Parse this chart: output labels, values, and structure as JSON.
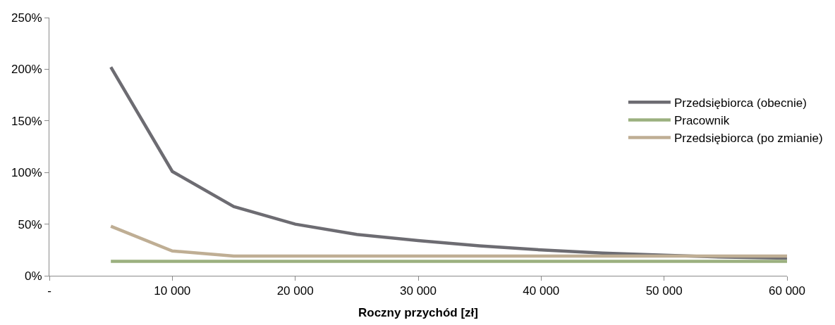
{
  "chart_data": {
    "type": "line",
    "xlabel": "Roczny przychód [zł]",
    "x": [
      5000,
      10000,
      15000,
      20000,
      25000,
      30000,
      35000,
      40000,
      45000,
      50000,
      55000,
      60000
    ],
    "series": [
      {
        "name": "Przedsiębiorca (obecnie)",
        "color": "#6d6c72",
        "values": [
          202,
          101,
          67,
          50,
          40,
          34,
          29,
          25,
          22,
          20,
          18,
          17
        ]
      },
      {
        "name": "Pracownik",
        "color": "#9bb07f",
        "values": [
          14,
          14,
          14,
          14,
          14,
          14,
          14,
          14,
          14,
          14,
          14,
          14
        ]
      },
      {
        "name": "Przedsiębiorca (po zmianie)",
        "color": "#bfae94",
        "values": [
          48,
          24,
          19,
          19,
          19,
          19,
          19,
          19,
          19,
          19,
          19,
          19
        ]
      }
    ],
    "xlim": [
      0,
      60000
    ],
    "xticks": [
      {
        "value": 0,
        "label": "-"
      },
      {
        "value": 10000,
        "label": "10 000"
      },
      {
        "value": 20000,
        "label": "20 000"
      },
      {
        "value": 30000,
        "label": "30 000"
      },
      {
        "value": 40000,
        "label": "40 000"
      },
      {
        "value": 50000,
        "label": "50 000"
      },
      {
        "value": 60000,
        "label": "60 000"
      }
    ],
    "ylim": [
      0,
      250
    ],
    "yticks": [
      {
        "value": 0,
        "label": "0%"
      },
      {
        "value": 50,
        "label": "50%"
      },
      {
        "value": 100,
        "label": "100%"
      },
      {
        "value": 150,
        "label": "150%"
      },
      {
        "value": 200,
        "label": "200%"
      },
      {
        "value": 250,
        "label": "250%"
      }
    ],
    "legend": "right",
    "marker": "none",
    "line_style": "solid"
  }
}
